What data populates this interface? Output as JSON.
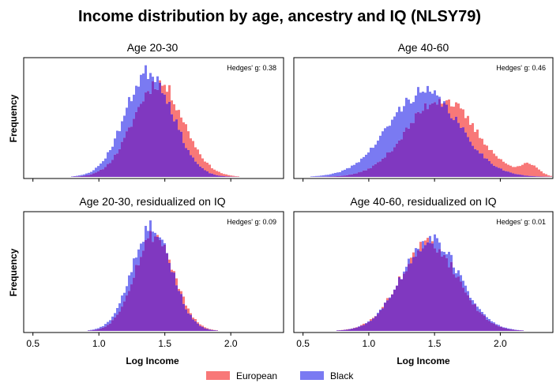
{
  "chart_data": {
    "type": "histogram",
    "title": "Income distribution by age, ancestry and IQ (NLSY79)",
    "xlabel": "Log Income",
    "ylabel": "Frequency",
    "xlim": [
      0.43,
      2.4
    ],
    "xticks": [
      0.5,
      1.0,
      1.5,
      2.0
    ],
    "xtick_labels": [
      "0.5",
      "1.0",
      "1.5",
      "2.0"
    ],
    "series_colors": {
      "european": "#f87878",
      "black": "#7a7af2",
      "overlap": "#8038c0"
    },
    "legend": {
      "position": "bottom-center",
      "entries": [
        "European",
        "Black"
      ]
    },
    "panels": [
      {
        "title": "Age 20-30",
        "hedges_label": "Hedges' g: 0.38",
        "series": [
          {
            "name": "European",
            "mean": 1.45,
            "sd": 0.19,
            "peak": 0.82,
            "noise_seed": 11
          },
          {
            "name": "Black",
            "mean": 1.38,
            "sd": 0.18,
            "peak": 0.92,
            "noise_seed": 23
          }
        ]
      },
      {
        "title": "Age 40-60",
        "hedges_label": "Hedges' g: 0.46",
        "series": [
          {
            "name": "European",
            "mean": 1.55,
            "sd": 0.26,
            "peak": 0.68,
            "noise_seed": 37,
            "extra_bump": {
              "mean": 2.22,
              "sd": 0.07,
              "height": 0.09
            }
          },
          {
            "name": "Black",
            "mean": 1.42,
            "sd": 0.27,
            "peak": 0.74,
            "noise_seed": 41
          }
        ]
      },
      {
        "title": "Age 20-30, residualized on IQ",
        "hedges_label": "Hedges' g: 0.09",
        "series": [
          {
            "name": "European",
            "mean": 1.42,
            "sd": 0.15,
            "peak": 0.84,
            "noise_seed": 53
          },
          {
            "name": "Black",
            "mean": 1.4,
            "sd": 0.15,
            "peak": 0.92,
            "noise_seed": 67
          }
        ]
      },
      {
        "title": "Age 40-60, residualized on IQ",
        "hedges_label": "Hedges' g: 0.01",
        "series": [
          {
            "name": "European",
            "mean": 1.46,
            "sd": 0.22,
            "peak": 0.76,
            "noise_seed": 71
          },
          {
            "name": "Black",
            "mean": 1.47,
            "sd": 0.22,
            "peak": 0.8,
            "noise_seed": 89
          }
        ]
      }
    ]
  }
}
